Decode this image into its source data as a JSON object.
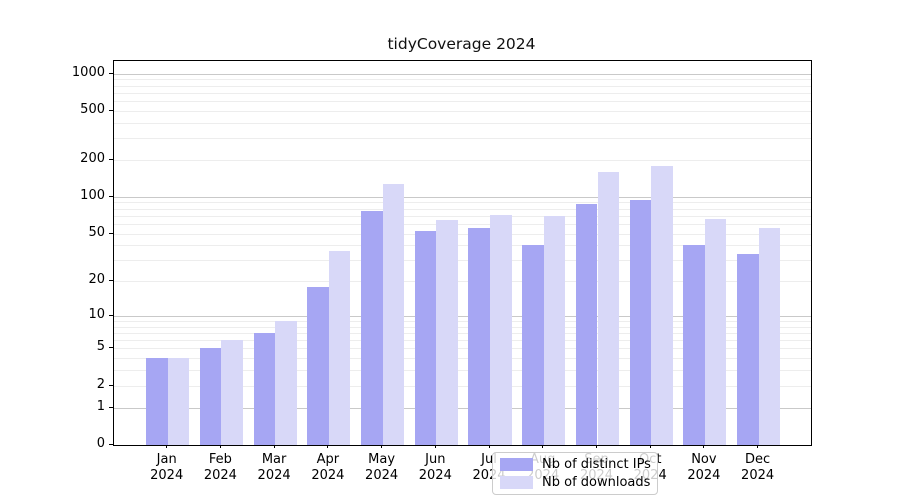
{
  "title": "tidyCoverage 2024",
  "chart_data": {
    "type": "bar",
    "title": "tidyCoverage 2024",
    "categories": [
      "Jan 2024",
      "Feb 2024",
      "Mar 2024",
      "Apr 2024",
      "May 2024",
      "Jun 2024",
      "Jul 2024",
      "Aug 2024",
      "Sep 2024",
      "Oct 2024",
      "Nov 2024",
      "Dec 2024"
    ],
    "series": [
      {
        "name": "Nb of distinct IPs",
        "color": "#a6a6f3",
        "values": [
          4,
          5,
          7,
          18,
          76,
          52,
          56,
          40,
          87,
          95,
          40,
          34
        ]
      },
      {
        "name": "Nb of downloads",
        "color": "#d8d8f8",
        "values": [
          4,
          6,
          9,
          36,
          127,
          65,
          71,
          70,
          158,
          178,
          66,
          56
        ]
      }
    ],
    "xlabel": "",
    "ylabel": "",
    "yscale": "log1p",
    "yticks": [
      0,
      1,
      2,
      5,
      10,
      20,
      50,
      100,
      200,
      500,
      1000
    ],
    "ylim": [
      0,
      1265
    ],
    "grid": "on",
    "major_grid_values": [
      1,
      10,
      100,
      1000
    ],
    "legend_position": "inside-bottom-center",
    "colors": {
      "spine": "#000000",
      "major_grid": "#c9c9c9",
      "minor_grid": "#ededed",
      "background": "#ffffff"
    }
  }
}
